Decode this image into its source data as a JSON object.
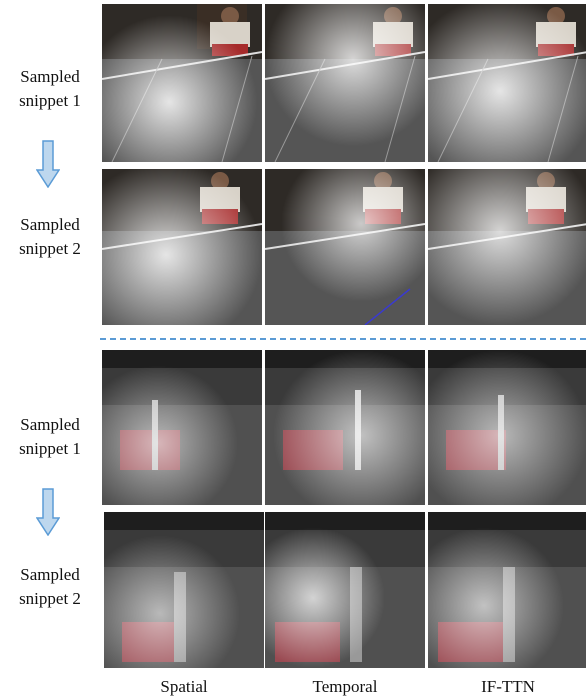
{
  "groups": [
    {
      "snippets": [
        {
          "label_line1": "Sampled",
          "label_line2": "snippet 1"
        },
        {
          "label_line1": "Sampled",
          "label_line2": "snippet 2"
        }
      ]
    },
    {
      "snippets": [
        {
          "label_line1": "Sampled",
          "label_line2": "snippet 1"
        },
        {
          "label_line1": "Sampled",
          "label_line2": "snippet 2"
        }
      ]
    }
  ],
  "columns": [
    "Spatial",
    "Temporal",
    "IF-TTN"
  ],
  "colors": {
    "arrow_fill": "#bdd7ee",
    "arrow_stroke": "#5b9bd5",
    "separator": "#5b9bd5"
  }
}
